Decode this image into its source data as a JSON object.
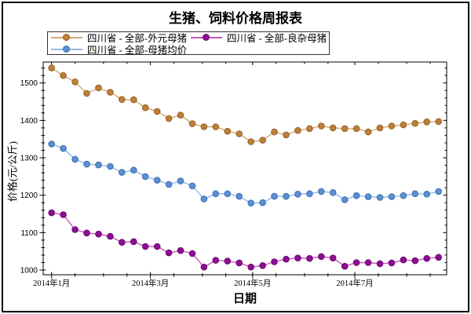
{
  "title": "生猪、饲料价格周报表",
  "axes": {
    "x_label": "日期",
    "y_label": "价格(元/公斤)",
    "y_ticks": [
      1000,
      1100,
      1200,
      1300,
      1400,
      1500
    ],
    "x_ticks": [
      {
        "label": "2014年1月",
        "day": 0
      },
      {
        "label": "2014年3月",
        "day": 59
      },
      {
        "label": "2014年5月",
        "day": 120
      },
      {
        "label": "2014年7月",
        "day": 181
      }
    ]
  },
  "chart_data": {
    "type": "line",
    "title": "生猪、饲料价格周报表",
    "xlabel": "日期",
    "ylabel": "价格(元/公斤)",
    "ylim": [
      987,
      1556
    ],
    "grid": false,
    "legend_position": "top-left",
    "x_tick_labels": [
      "2014年1月",
      "2014年3月",
      "2014年5月",
      "2014年7月"
    ],
    "x_dates": [
      "2014-01-01",
      "2014-01-08",
      "2014-01-15",
      "2014-01-22",
      "2014-01-29",
      "2014-02-05",
      "2014-02-12",
      "2014-02-19",
      "2014-02-26",
      "2014-03-05",
      "2014-03-12",
      "2014-03-19",
      "2014-03-26",
      "2014-04-02",
      "2014-04-09",
      "2014-04-16",
      "2014-04-23",
      "2014-04-30",
      "2014-05-07",
      "2014-05-14",
      "2014-05-21",
      "2014-05-28",
      "2014-06-04",
      "2014-06-11",
      "2014-06-18",
      "2014-06-25",
      "2014-07-02",
      "2014-07-09",
      "2014-07-16",
      "2014-07-23",
      "2014-07-30",
      "2014-08-06",
      "2014-08-13",
      "2014-08-20"
    ],
    "series": [
      {
        "name": "四川省 - 全部-外元母猪",
        "marker_color": "#BE7F3B",
        "edge_color": "#93621F",
        "line_color": "#D6A876",
        "values": [
          1540,
          1520,
          1503,
          1472,
          1487,
          1475,
          1456,
          1455,
          1434,
          1424,
          1405,
          1414,
          1391,
          1383,
          1383,
          1371,
          1364,
          1343,
          1347,
          1369,
          1361,
          1373,
          1378,
          1385,
          1380,
          1378,
          1378,
          1369,
          1380,
          1385,
          1388,
          1392,
          1396,
          1397
        ]
      },
      {
        "name": "四川省 - 全部-母猪均价",
        "marker_color": "#5B90D2",
        "edge_color": "#3E6FB0",
        "line_color": "#92B9E6",
        "values": [
          1337,
          1325,
          1296,
          1283,
          1281,
          1277,
          1261,
          1267,
          1250,
          1240,
          1229,
          1238,
          1225,
          1190,
          1204,
          1204,
          1197,
          1179,
          1180,
          1197,
          1197,
          1203,
          1204,
          1210,
          1207,
          1188,
          1199,
          1196,
          1194,
          1196,
          1199,
          1204,
          1203,
          1210
        ]
      },
      {
        "name": "四川省 - 全部-良杂母猪",
        "marker_color": "#8E0E95",
        "edge_color": "#6B0A70",
        "line_color": "#C957B9",
        "values": [
          1153,
          1148,
          1108,
          1099,
          1096,
          1090,
          1074,
          1076,
          1063,
          1063,
          1046,
          1052,
          1044,
          1008,
          1026,
          1024,
          1019,
          1008,
          1012,
          1022,
          1029,
          1032,
          1031,
          1036,
          1032,
          1010,
          1020,
          1020,
          1017,
          1019,
          1027,
          1025,
          1031,
          1034
        ]
      }
    ]
  },
  "legend": {
    "order": [
      0,
      2,
      1
    ]
  }
}
